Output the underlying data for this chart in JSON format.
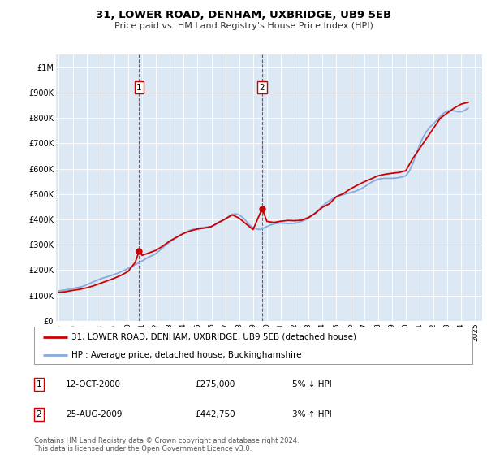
{
  "title": "31, LOWER ROAD, DENHAM, UXBRIDGE, UB9 5EB",
  "subtitle": "Price paid vs. HM Land Registry's House Price Index (HPI)",
  "yticks": [
    0,
    100000,
    200000,
    300000,
    400000,
    500000,
    600000,
    700000,
    800000,
    900000,
    1000000
  ],
  "ytick_labels": [
    "£0",
    "£100K",
    "£200K",
    "£300K",
    "£400K",
    "£500K",
    "£600K",
    "£700K",
    "£800K",
    "£900K",
    "£1M"
  ],
  "xlim_start": 1994.8,
  "xlim_end": 2025.5,
  "ylim_min": 0,
  "ylim_max": 1050000,
  "line_color_property": "#cc0000",
  "line_color_hpi": "#88aadd",
  "transaction1_x": 2000.79,
  "transaction1_y": 275000,
  "transaction1_label": "1",
  "transaction2_x": 2009.65,
  "transaction2_y": 442750,
  "transaction2_label": "2",
  "vline1_x": 2000.79,
  "vline2_x": 2009.65,
  "legend_property_label": "31, LOWER ROAD, DENHAM, UXBRIDGE, UB9 5EB (detached house)",
  "legend_hpi_label": "HPI: Average price, detached house, Buckinghamshire",
  "annotation1_num": "1",
  "annotation1_date": "12-OCT-2000",
  "annotation1_price": "£275,000",
  "annotation1_hpi": "5% ↓ HPI",
  "annotation2_num": "2",
  "annotation2_date": "25-AUG-2009",
  "annotation2_price": "£442,750",
  "annotation2_hpi": "3% ↑ HPI",
  "footer": "Contains HM Land Registry data © Crown copyright and database right 2024.\nThis data is licensed under the Open Government Licence v3.0.",
  "bg_color": "#ffffff",
  "plot_bg_color": "#dce9f5",
  "grid_color": "#ffffff",
  "hpi_years": [
    1995,
    1995.25,
    1995.5,
    1995.75,
    1996,
    1996.25,
    1996.5,
    1996.75,
    1997,
    1997.25,
    1997.5,
    1997.75,
    1998,
    1998.25,
    1998.5,
    1998.75,
    1999,
    1999.25,
    1999.5,
    1999.75,
    2000,
    2000.25,
    2000.5,
    2000.75,
    2001,
    2001.25,
    2001.5,
    2001.75,
    2002,
    2002.25,
    2002.5,
    2002.75,
    2003,
    2003.25,
    2003.5,
    2003.75,
    2004,
    2004.25,
    2004.5,
    2004.75,
    2005,
    2005.25,
    2005.5,
    2005.75,
    2006,
    2006.25,
    2006.5,
    2006.75,
    2007,
    2007.25,
    2007.5,
    2007.75,
    2008,
    2008.25,
    2008.5,
    2008.75,
    2009,
    2009.25,
    2009.5,
    2009.75,
    2010,
    2010.25,
    2010.5,
    2010.75,
    2011,
    2011.25,
    2011.5,
    2011.75,
    2012,
    2012.25,
    2012.5,
    2012.75,
    2013,
    2013.25,
    2013.5,
    2013.75,
    2014,
    2014.25,
    2014.5,
    2014.75,
    2015,
    2015.25,
    2015.5,
    2015.75,
    2016,
    2016.25,
    2016.5,
    2016.75,
    2017,
    2017.25,
    2017.5,
    2017.75,
    2018,
    2018.25,
    2018.5,
    2018.75,
    2019,
    2019.25,
    2019.5,
    2019.75,
    2020,
    2020.25,
    2020.5,
    2020.75,
    2021,
    2021.25,
    2021.5,
    2021.75,
    2022,
    2022.25,
    2022.5,
    2022.75,
    2023,
    2023.25,
    2023.5,
    2023.75,
    2024,
    2024.25,
    2024.5
  ],
  "hpi_values": [
    118000,
    120000,
    122000,
    124000,
    127000,
    130000,
    133000,
    136000,
    142000,
    148000,
    154000,
    160000,
    165000,
    170000,
    174000,
    178000,
    183000,
    188000,
    194000,
    200000,
    207000,
    214000,
    221000,
    228000,
    236000,
    244000,
    252000,
    258000,
    265000,
    277000,
    289000,
    300000,
    310000,
    320000,
    330000,
    338000,
    345000,
    352000,
    358000,
    362000,
    365000,
    367000,
    369000,
    370000,
    372000,
    378000,
    385000,
    393000,
    402000,
    412000,
    420000,
    422000,
    418000,
    408000,
    394000,
    378000,
    367000,
    362000,
    360000,
    365000,
    372000,
    378000,
    382000,
    385000,
    386000,
    385000,
    384000,
    384000,
    385000,
    388000,
    393000,
    398000,
    405000,
    415000,
    427000,
    440000,
    453000,
    464000,
    474000,
    482000,
    489000,
    494000,
    498000,
    502000,
    505000,
    509000,
    514000,
    520000,
    528000,
    537000,
    546000,
    553000,
    558000,
    561000,
    562000,
    562000,
    562000,
    563000,
    565000,
    568000,
    572000,
    590000,
    620000,
    658000,
    695000,
    725000,
    748000,
    765000,
    778000,
    792000,
    807000,
    820000,
    828000,
    830000,
    828000,
    825000,
    825000,
    830000,
    840000
  ],
  "prop_years": [
    1995,
    1995.5,
    1996,
    1996.5,
    1997,
    1997.5,
    1998,
    1998.5,
    1999,
    1999.5,
    2000,
    2000.5,
    2000.79,
    2001,
    2001.5,
    2002,
    2002.5,
    2003,
    2003.5,
    2004,
    2004.5,
    2005,
    2005.5,
    2006,
    2006.5,
    2007,
    2007.5,
    2008,
    2008.5,
    2009,
    2009.65,
    2010,
    2010.5,
    2011,
    2011.5,
    2012,
    2012.5,
    2013,
    2013.5,
    2014,
    2014.5,
    2015,
    2015.5,
    2016,
    2016.5,
    2017,
    2017.5,
    2018,
    2018.5,
    2019,
    2019.5,
    2020,
    2020.5,
    2021,
    2021.5,
    2022,
    2022.5,
    2023,
    2023.5,
    2024,
    2024.5
  ],
  "prop_values": [
    112000,
    115000,
    120000,
    124000,
    130000,
    138000,
    148000,
    158000,
    168000,
    180000,
    195000,
    230000,
    275000,
    258000,
    268000,
    278000,
    295000,
    315000,
    330000,
    345000,
    355000,
    362000,
    366000,
    372000,
    388000,
    402000,
    418000,
    405000,
    382000,
    360000,
    442750,
    392000,
    388000,
    393000,
    396000,
    395000,
    397000,
    408000,
    425000,
    448000,
    462000,
    490000,
    502000,
    520000,
    535000,
    548000,
    560000,
    572000,
    578000,
    582000,
    585000,
    592000,
    640000,
    680000,
    720000,
    760000,
    800000,
    820000,
    840000,
    855000,
    862000
  ]
}
